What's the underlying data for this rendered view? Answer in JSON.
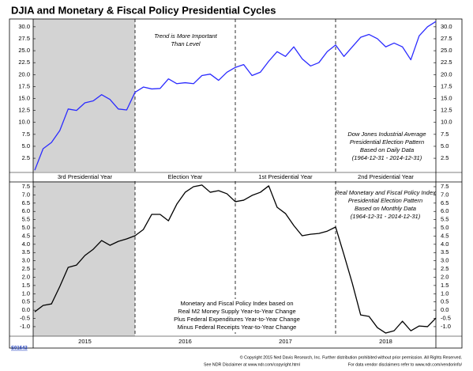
{
  "title": "DJIA and Monetary & Fiscal Policy Presidential Cycles",
  "chart_data": [
    {
      "type": "line",
      "period_labels": [
        "3rd Presidential Year",
        "Election Year",
        "1st Presidential Year",
        "2nd Presidential Year"
      ],
      "series": [
        {
          "color": "#2b2bff",
          "values": [
            0.0,
            4.5,
            5.8,
            8.3,
            12.8,
            12.5,
            14.1,
            14.5,
            15.8,
            14.8,
            12.8,
            12.6,
            16.3,
            17.4,
            17.0,
            17.1,
            19.1,
            18.1,
            18.3,
            18.1,
            19.8,
            20.1,
            18.8,
            20.5,
            21.5,
            22.1,
            19.8,
            20.5,
            22.8,
            24.8,
            23.8,
            25.8,
            23.3,
            21.8,
            22.5,
            24.8,
            26.2,
            23.8,
            25.8,
            27.8,
            28.4,
            27.5,
            25.8,
            26.6,
            25.8,
            23.1,
            28.1,
            30.0,
            31.1
          ]
        }
      ],
      "ylim": [
        -0.3,
        31.3
      ],
      "yticks": [
        {
          "value": 30,
          "label": "30.0"
        },
        27.5,
        {
          "value": 25,
          "label": "25.0"
        },
        22.5,
        {
          "value": 20,
          "label": "20.0"
        },
        17.5,
        {
          "value": 15,
          "label": "15.0"
        },
        12.5,
        {
          "value": 10,
          "label": "10.0"
        },
        7.5,
        {
          "value": 5,
          "label": "5.0"
        },
        2.5
      ],
      "annotations": [
        [
          "Trend is More Important",
          "Than Level"
        ],
        [
          "Dow Jones Industrial Average",
          "Presidential Election Pattern",
          "Based on Daily Data",
          "(1964-12-31 - 2014-12-31)"
        ]
      ]
    },
    {
      "type": "line",
      "period_labels": [
        "2015",
        "2016",
        "2017",
        "2018"
      ],
      "series": [
        {
          "color": "#000000",
          "values": [
            -0.1,
            0.29,
            0.38,
            1.44,
            2.6,
            2.74,
            3.32,
            3.7,
            4.23,
            3.94,
            4.18,
            4.33,
            4.52,
            4.9,
            5.82,
            5.82,
            5.43,
            6.44,
            7.16,
            7.5,
            7.6,
            7.16,
            7.26,
            7.07,
            6.59,
            6.68,
            6.97,
            7.16,
            7.55,
            6.25,
            5.87,
            5.14,
            4.52,
            4.61,
            4.66,
            4.8,
            5.05,
            3.37,
            1.63,
            -0.29,
            -0.38,
            -1.06,
            -1.39,
            -1.25,
            -0.67,
            -1.25,
            -0.96,
            -1.0,
            -0.48
          ]
        }
      ],
      "ylim": [
        -1.58,
        7.74
      ],
      "yticks": [
        7.5,
        {
          "value": 7,
          "label": "7.0"
        },
        6.5,
        {
          "value": 6,
          "label": "6.0"
        },
        5.5,
        {
          "value": 5,
          "label": "5.0"
        },
        4.5,
        {
          "value": 4,
          "label": "4.0"
        },
        3.5,
        {
          "value": 3,
          "label": "3.0"
        },
        2.5,
        {
          "value": 2,
          "label": "2.0"
        },
        1.5,
        {
          "value": 1,
          "label": "1.0"
        },
        0.5,
        {
          "value": 0,
          "label": "0.0"
        },
        -0.5,
        {
          "value": -1,
          "label": "-1.0"
        }
      ],
      "annotations": [
        [
          "Real Monetary and Fiscal Policy Index",
          "Presidential Election Pattern",
          "Based on Monthly Data",
          "(1964-12-31 - 2014-12-31)"
        ],
        [
          "Monetary and Fiscal Policy Index based on",
          "Real M2 Money Supply Year-to-Year Change",
          "Plus Federal Expenditures Year-to-Year Change",
          "Minus Federal Receipts Year-to-Year Change"
        ]
      ]
    }
  ],
  "footer": {
    "code": "S01643",
    "copyright": "© Copyright 2015 Ned Davis Research, Inc. Further distribution prohibited without prior permission. All Rights Reserved.",
    "disclaimer": [
      "See NDR Disclaimer at www.ndr.com/copyright.html",
      "For data vendor disclaimers refer to www.ndr.com/vendorinfo/"
    ]
  }
}
